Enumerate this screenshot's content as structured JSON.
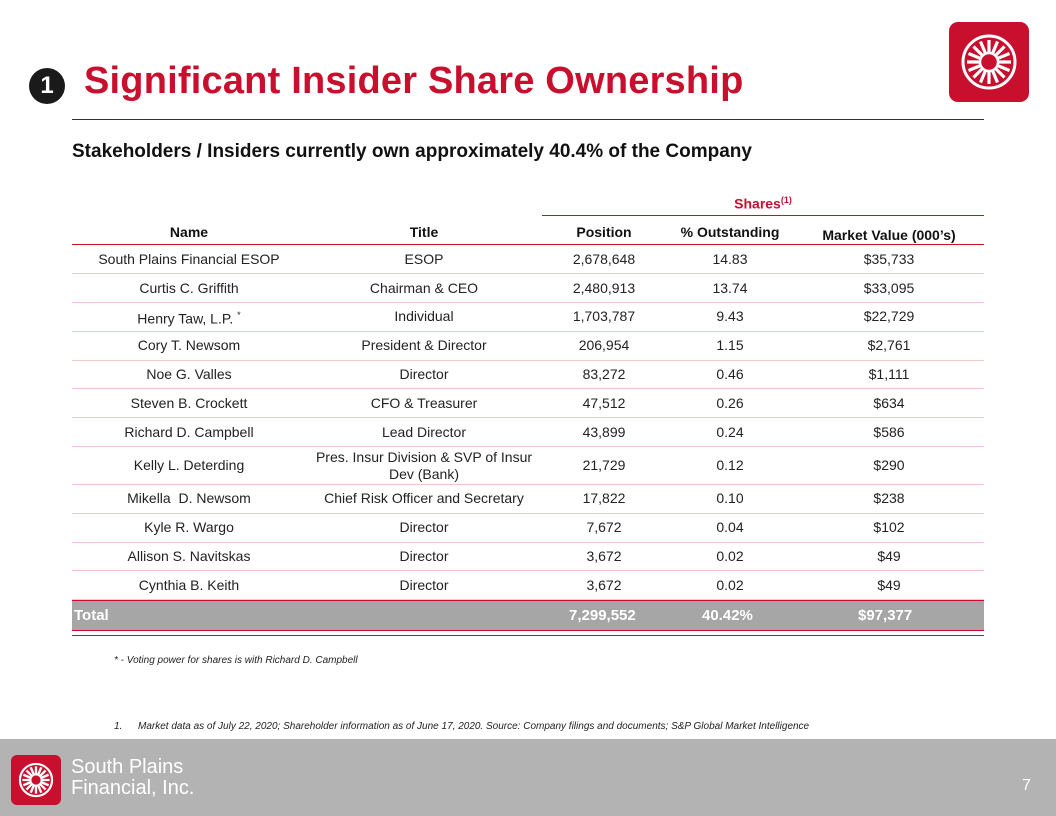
{
  "slide": {
    "badge": "1",
    "title": "Significant Insider Share Ownership",
    "subtitle": "Stakeholders / Insiders currently own approximately 40.4% of the Company"
  },
  "table": {
    "group_header": "Shares",
    "group_header_note": "(1)",
    "columns": {
      "name": "Name",
      "title": "Title",
      "position": "Position",
      "pct": "% Outstanding",
      "market_value": "Market Value (000’s)"
    },
    "rows": [
      {
        "name": "South Plains Financial ESOP",
        "title": "ESOP",
        "position": "2,678,648",
        "pct": "14.83",
        "market_value": "$35,733"
      },
      {
        "name": "Curtis C. Griffith",
        "title": "Chairman & CEO",
        "position": "2,480,913",
        "pct": "13.74",
        "market_value": "$33,095"
      },
      {
        "name": "Henry Taw, L.P.",
        "mark": "*",
        "title": "Individual",
        "position": "1,703,787",
        "pct": "9.43",
        "market_value": "$22,729"
      },
      {
        "name": "Cory T. Newsom",
        "title": "President & Director",
        "position": "206,954",
        "pct": "1.15",
        "market_value": "$2,761"
      },
      {
        "name": "Noe G. Valles",
        "title": "Director",
        "position": "83,272",
        "pct": "0.46",
        "market_value": "$1,111"
      },
      {
        "name": "Steven B. Crockett",
        "title": "CFO & Treasurer",
        "position": "47,512",
        "pct": "0.26",
        "market_value": "$634"
      },
      {
        "name": "Richard D. Campbell",
        "title": "Lead Director",
        "position": "43,899",
        "pct": "0.24",
        "market_value": "$586"
      },
      {
        "name": "Kelly L. Deterding",
        "title": "Pres. Insur Division & SVP of Insur Dev (Bank)",
        "position": "21,729",
        "pct": "0.12",
        "market_value": "$290"
      },
      {
        "name": "Mikella  D. Newsom",
        "title": "Chief Risk Officer and Secretary",
        "position": "17,822",
        "pct": "0.10",
        "market_value": "$238"
      },
      {
        "name": "Kyle R. Wargo",
        "title": "Director",
        "position": "7,672",
        "pct": "0.04",
        "market_value": "$102"
      },
      {
        "name": "Allison S. Navitskas",
        "title": "Director",
        "position": "3,672",
        "pct": "0.02",
        "market_value": "$49"
      },
      {
        "name": "Cynthia B. Keith",
        "title": "Director",
        "position": "3,672",
        "pct": "0.02",
        "market_value": "$49"
      }
    ],
    "total": {
      "label": "Total",
      "position": "7,299,552",
      "pct": "40.42%",
      "market_value": "$97,377"
    }
  },
  "footnotes": {
    "star": "* - Voting power for shares is with Richard D. Campbell",
    "note1_number": "1.",
    "note1_text": "Market data as of July 22, 2020; Shareholder information as of June 17, 2020. Source: Company filings and documents; S&P Global Market Intelligence"
  },
  "footer": {
    "company_name": "South Plains\nFinancial, Inc.",
    "page_number": "7"
  },
  "colors": {
    "brand_red": "#c8102e",
    "footer_gray": "#b3b3b3",
    "total_row_gray": "#a6a6a6"
  },
  "icons": {
    "logo": "sunburst-logo-icon",
    "badge": "number-badge"
  }
}
